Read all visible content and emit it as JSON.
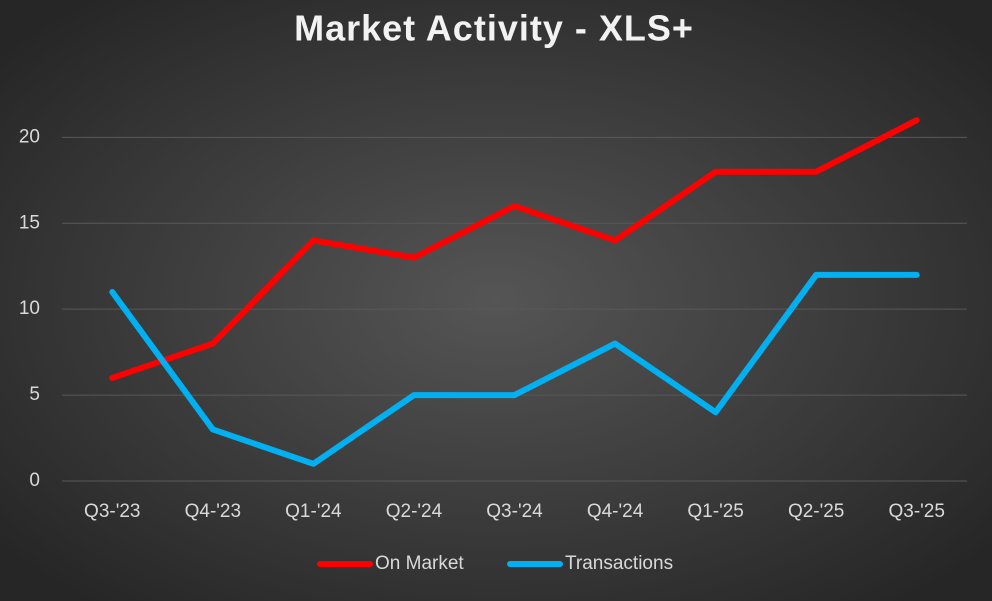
{
  "chart_data": {
    "type": "line",
    "title": "Market Activity - XLS+",
    "categories": [
      "Q3-'23",
      "Q4-'23",
      "Q1-'24",
      "Q2-'24",
      "Q3-'24",
      "Q4-'24",
      "Q1-'25",
      "Q2-'25",
      "Q3-'25"
    ],
    "series": [
      {
        "name": "On Market",
        "color": "#ff0000",
        "values": [
          6,
          8,
          14,
          13,
          16,
          14,
          18,
          18,
          21
        ]
      },
      {
        "name": "Transactions",
        "color": "#00b0f0",
        "values": [
          11,
          3,
          1,
          5,
          5,
          8,
          4,
          12,
          12
        ]
      }
    ],
    "ylim": [
      0,
      22
    ],
    "yticks": [
      0,
      5,
      10,
      15,
      20
    ],
    "grid": true,
    "legend": "bottom"
  }
}
